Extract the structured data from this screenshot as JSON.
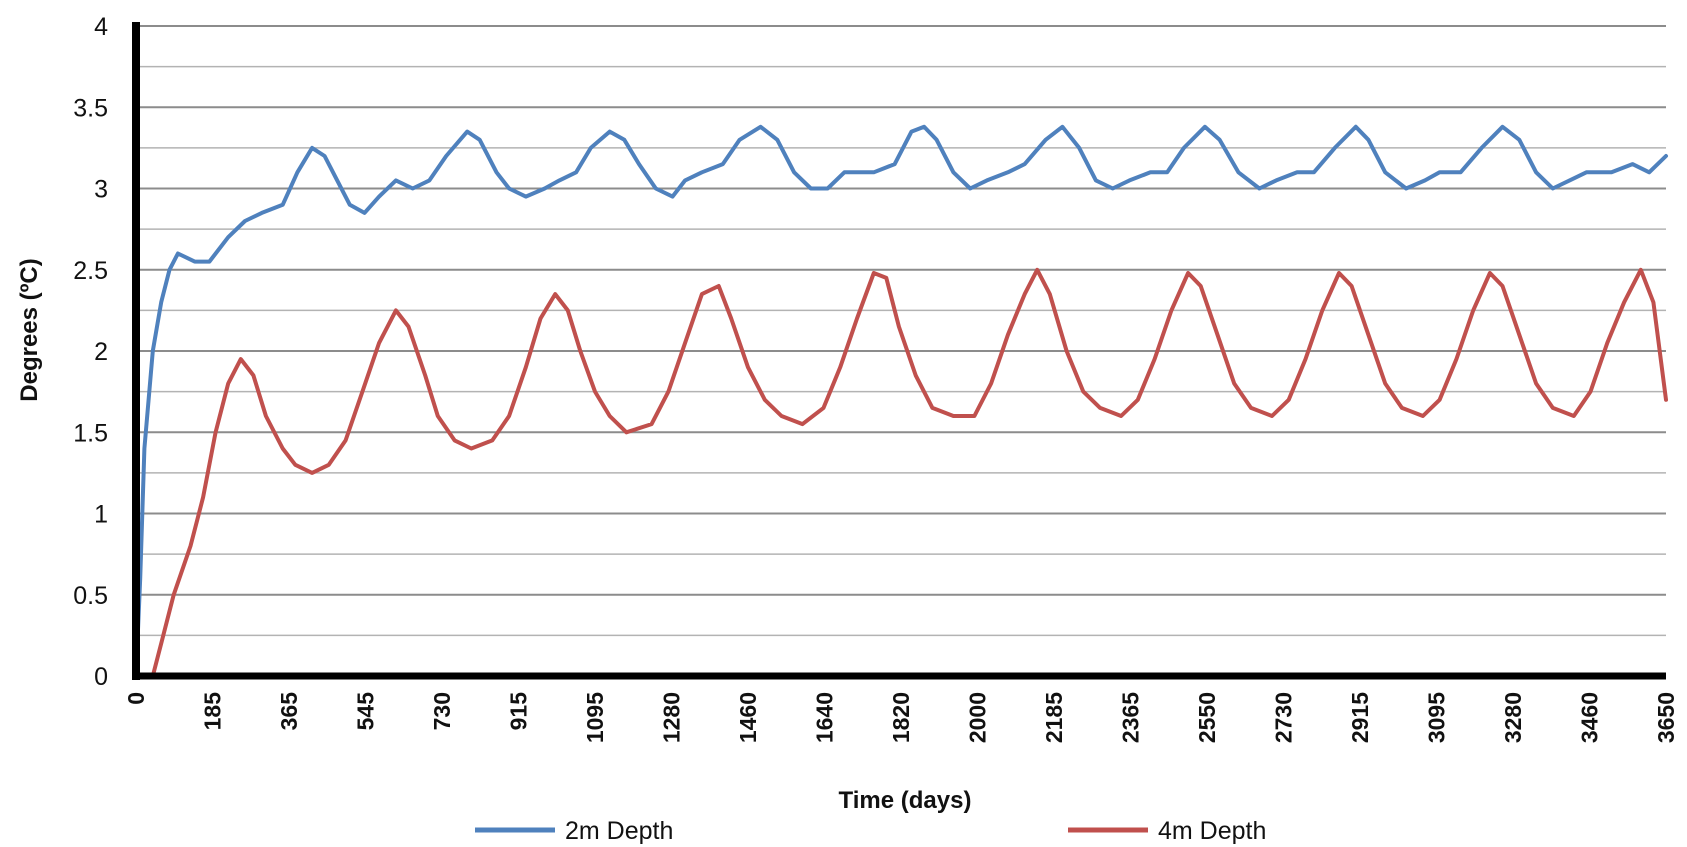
{
  "chart_data": {
    "type": "line",
    "title": "",
    "xlabel": "Time (days)",
    "ylabel": "Degrees (ºC)",
    "xlim": [
      0,
      3650
    ],
    "ylim": [
      0,
      4
    ],
    "x_ticks": [
      "0",
      "185",
      "365",
      "545",
      "730",
      "915",
      "1095",
      "1280",
      "1460",
      "1640",
      "1820",
      "2000",
      "2185",
      "2365",
      "2550",
      "2730",
      "2915",
      "3095",
      "3280",
      "3460",
      "3650"
    ],
    "y_ticks": [
      "0",
      "0.5",
      "1",
      "1.5",
      "2",
      "2.5",
      "3",
      "3.5",
      "4"
    ],
    "grid": true,
    "legend_position": "bottom",
    "series": [
      {
        "name": "2m Depth",
        "color": "#4F81BD",
        "points": [
          [
            0,
            0
          ],
          [
            10,
            0.6
          ],
          [
            20,
            1.4
          ],
          [
            40,
            2.0
          ],
          [
            60,
            2.3
          ],
          [
            80,
            2.5
          ],
          [
            100,
            2.6
          ],
          [
            140,
            2.55
          ],
          [
            175,
            2.55
          ],
          [
            220,
            2.7
          ],
          [
            260,
            2.8
          ],
          [
            300,
            2.85
          ],
          [
            350,
            2.9
          ],
          [
            385,
            3.1
          ],
          [
            420,
            3.25
          ],
          [
            450,
            3.2
          ],
          [
            480,
            3.05
          ],
          [
            510,
            2.9
          ],
          [
            545,
            2.85
          ],
          [
            580,
            2.95
          ],
          [
            620,
            3.05
          ],
          [
            660,
            3.0
          ],
          [
            700,
            3.05
          ],
          [
            740,
            3.2
          ],
          [
            790,
            3.35
          ],
          [
            820,
            3.3
          ],
          [
            860,
            3.1
          ],
          [
            890,
            3.0
          ],
          [
            930,
            2.95
          ],
          [
            975,
            3.0
          ],
          [
            1010,
            3.05
          ],
          [
            1050,
            3.1
          ],
          [
            1085,
            3.25
          ],
          [
            1130,
            3.35
          ],
          [
            1165,
            3.3
          ],
          [
            1200,
            3.15
          ],
          [
            1240,
            3.0
          ],
          [
            1280,
            2.95
          ],
          [
            1310,
            3.05
          ],
          [
            1350,
            3.1
          ],
          [
            1400,
            3.15
          ],
          [
            1440,
            3.3
          ],
          [
            1490,
            3.38
          ],
          [
            1530,
            3.3
          ],
          [
            1570,
            3.1
          ],
          [
            1610,
            3.0
          ],
          [
            1650,
            3.0
          ],
          [
            1690,
            3.1
          ],
          [
            1760,
            3.1
          ],
          [
            1810,
            3.15
          ],
          [
            1850,
            3.35
          ],
          [
            1880,
            3.38
          ],
          [
            1910,
            3.3
          ],
          [
            1950,
            3.1
          ],
          [
            1990,
            3.0
          ],
          [
            2030,
            3.05
          ],
          [
            2080,
            3.1
          ],
          [
            2120,
            3.15
          ],
          [
            2170,
            3.3
          ],
          [
            2210,
            3.38
          ],
          [
            2250,
            3.25
          ],
          [
            2290,
            3.05
          ],
          [
            2330,
            3.0
          ],
          [
            2370,
            3.05
          ],
          [
            2420,
            3.1
          ],
          [
            2460,
            3.1
          ],
          [
            2500,
            3.25
          ],
          [
            2550,
            3.38
          ],
          [
            2585,
            3.3
          ],
          [
            2630,
            3.1
          ],
          [
            2680,
            3.0
          ],
          [
            2720,
            3.05
          ],
          [
            2770,
            3.1
          ],
          [
            2810,
            3.1
          ],
          [
            2860,
            3.25
          ],
          [
            2910,
            3.38
          ],
          [
            2940,
            3.3
          ],
          [
            2980,
            3.1
          ],
          [
            3030,
            3.0
          ],
          [
            3075,
            3.05
          ],
          [
            3110,
            3.1
          ],
          [
            3160,
            3.1
          ],
          [
            3210,
            3.25
          ],
          [
            3260,
            3.38
          ],
          [
            3300,
            3.3
          ],
          [
            3340,
            3.1
          ],
          [
            3380,
            3.0
          ],
          [
            3420,
            3.05
          ],
          [
            3460,
            3.1
          ],
          [
            3520,
            3.1
          ],
          [
            3570,
            3.15
          ],
          [
            3610,
            3.1
          ],
          [
            3650,
            3.2
          ]
        ]
      },
      {
        "name": "4m Depth",
        "color": "#C0504D",
        "points": [
          [
            0,
            0
          ],
          [
            40,
            0.0
          ],
          [
            60,
            0.2
          ],
          [
            90,
            0.5
          ],
          [
            130,
            0.8
          ],
          [
            160,
            1.1
          ],
          [
            190,
            1.5
          ],
          [
            220,
            1.8
          ],
          [
            250,
            1.95
          ],
          [
            280,
            1.85
          ],
          [
            310,
            1.6
          ],
          [
            350,
            1.4
          ],
          [
            380,
            1.3
          ],
          [
            420,
            1.25
          ],
          [
            460,
            1.3
          ],
          [
            500,
            1.45
          ],
          [
            540,
            1.75
          ],
          [
            580,
            2.05
          ],
          [
            620,
            2.25
          ],
          [
            650,
            2.15
          ],
          [
            690,
            1.85
          ],
          [
            720,
            1.6
          ],
          [
            760,
            1.45
          ],
          [
            800,
            1.4
          ],
          [
            850,
            1.45
          ],
          [
            890,
            1.6
          ],
          [
            930,
            1.9
          ],
          [
            965,
            2.2
          ],
          [
            1000,
            2.35
          ],
          [
            1030,
            2.25
          ],
          [
            1060,
            2.0
          ],
          [
            1095,
            1.75
          ],
          [
            1130,
            1.6
          ],
          [
            1170,
            1.5
          ],
          [
            1230,
            1.55
          ],
          [
            1270,
            1.75
          ],
          [
            1310,
            2.05
          ],
          [
            1350,
            2.35
          ],
          [
            1390,
            2.4
          ],
          [
            1420,
            2.2
          ],
          [
            1460,
            1.9
          ],
          [
            1500,
            1.7
          ],
          [
            1540,
            1.6
          ],
          [
            1590,
            1.55
          ],
          [
            1640,
            1.65
          ],
          [
            1680,
            1.9
          ],
          [
            1720,
            2.2
          ],
          [
            1760,
            2.48
          ],
          [
            1790,
            2.45
          ],
          [
            1820,
            2.15
          ],
          [
            1860,
            1.85
          ],
          [
            1900,
            1.65
          ],
          [
            1950,
            1.6
          ],
          [
            2000,
            1.6
          ],
          [
            2040,
            1.8
          ],
          [
            2080,
            2.1
          ],
          [
            2120,
            2.35
          ],
          [
            2150,
            2.5
          ],
          [
            2180,
            2.35
          ],
          [
            2220,
            2.0
          ],
          [
            2260,
            1.75
          ],
          [
            2300,
            1.65
          ],
          [
            2350,
            1.6
          ],
          [
            2390,
            1.7
          ],
          [
            2430,
            1.95
          ],
          [
            2470,
            2.25
          ],
          [
            2510,
            2.48
          ],
          [
            2540,
            2.4
          ],
          [
            2580,
            2.1
          ],
          [
            2620,
            1.8
          ],
          [
            2660,
            1.65
          ],
          [
            2710,
            1.6
          ],
          [
            2750,
            1.7
          ],
          [
            2790,
            1.95
          ],
          [
            2830,
            2.25
          ],
          [
            2870,
            2.48
          ],
          [
            2900,
            2.4
          ],
          [
            2940,
            2.1
          ],
          [
            2980,
            1.8
          ],
          [
            3020,
            1.65
          ],
          [
            3070,
            1.6
          ],
          [
            3110,
            1.7
          ],
          [
            3150,
            1.95
          ],
          [
            3190,
            2.25
          ],
          [
            3230,
            2.48
          ],
          [
            3260,
            2.4
          ],
          [
            3300,
            2.1
          ],
          [
            3340,
            1.8
          ],
          [
            3380,
            1.65
          ],
          [
            3430,
            1.6
          ],
          [
            3470,
            1.75
          ],
          [
            3510,
            2.05
          ],
          [
            3550,
            2.3
          ],
          [
            3590,
            2.5
          ],
          [
            3620,
            2.3
          ],
          [
            3650,
            1.7
          ]
        ]
      }
    ]
  }
}
